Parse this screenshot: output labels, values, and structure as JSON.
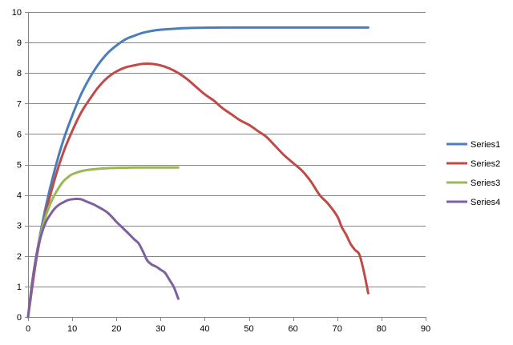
{
  "chart_data": {
    "type": "line",
    "title": "",
    "xlabel": "",
    "ylabel": "",
    "xlim": [
      0,
      90
    ],
    "ylim": [
      0,
      10
    ],
    "x_ticks": [
      0,
      10,
      20,
      30,
      40,
      50,
      60,
      70,
      80,
      90
    ],
    "y_ticks": [
      0,
      1,
      2,
      3,
      4,
      5,
      6,
      7,
      8,
      9,
      10
    ],
    "grid": "horizontal",
    "legend_position": "right",
    "series": [
      {
        "name": "Series1",
        "color": "#4a7ebb",
        "points": [
          [
            0,
            0
          ],
          [
            2,
            2.1
          ],
          [
            4,
            3.6
          ],
          [
            6,
            4.8
          ],
          [
            8,
            5.8
          ],
          [
            10,
            6.6
          ],
          [
            12,
            7.3
          ],
          [
            14,
            7.85
          ],
          [
            16,
            8.3
          ],
          [
            18,
            8.65
          ],
          [
            20,
            8.9
          ],
          [
            22,
            9.1
          ],
          [
            24,
            9.22
          ],
          [
            26,
            9.32
          ],
          [
            28,
            9.38
          ],
          [
            30,
            9.42
          ],
          [
            34,
            9.46
          ],
          [
            38,
            9.48
          ],
          [
            44,
            9.49
          ],
          [
            55,
            9.49
          ],
          [
            65,
            9.49
          ],
          [
            77,
            9.49
          ]
        ]
      },
      {
        "name": "Series2",
        "color": "#be4b48",
        "points": [
          [
            0,
            0
          ],
          [
            2,
            2
          ],
          [
            4,
            3.4
          ],
          [
            6,
            4.5
          ],
          [
            8,
            5.4
          ],
          [
            10,
            6.1
          ],
          [
            12,
            6.7
          ],
          [
            14,
            7.15
          ],
          [
            16,
            7.55
          ],
          [
            18,
            7.85
          ],
          [
            20,
            8.05
          ],
          [
            22,
            8.18
          ],
          [
            24,
            8.25
          ],
          [
            26,
            8.3
          ],
          [
            28,
            8.3
          ],
          [
            30,
            8.25
          ],
          [
            32,
            8.15
          ],
          [
            34,
            8.0
          ],
          [
            36,
            7.8
          ],
          [
            38,
            7.55
          ],
          [
            40,
            7.3
          ],
          [
            42,
            7.1
          ],
          [
            44,
            6.85
          ],
          [
            46,
            6.65
          ],
          [
            48,
            6.45
          ],
          [
            50,
            6.3
          ],
          [
            52,
            6.1
          ],
          [
            54,
            5.9
          ],
          [
            56,
            5.6
          ],
          [
            58,
            5.3
          ],
          [
            60,
            5.05
          ],
          [
            62,
            4.8
          ],
          [
            64,
            4.45
          ],
          [
            66,
            4.0
          ],
          [
            68,
            3.7
          ],
          [
            70,
            3.3
          ],
          [
            71,
            2.95
          ],
          [
            72,
            2.7
          ],
          [
            73,
            2.4
          ],
          [
            74,
            2.2
          ],
          [
            75,
            2.05
          ],
          [
            76,
            1.5
          ],
          [
            77,
            0.78
          ]
        ]
      },
      {
        "name": "Series3",
        "color": "#98b954",
        "points": [
          [
            0,
            0
          ],
          [
            1,
            1.2
          ],
          [
            2,
            2.1
          ],
          [
            3,
            2.8
          ],
          [
            4,
            3.3
          ],
          [
            5,
            3.7
          ],
          [
            6,
            4.0
          ],
          [
            7,
            4.25
          ],
          [
            8,
            4.45
          ],
          [
            9,
            4.58
          ],
          [
            10,
            4.68
          ],
          [
            12,
            4.78
          ],
          [
            14,
            4.83
          ],
          [
            16,
            4.86
          ],
          [
            18,
            4.88
          ],
          [
            20,
            4.89
          ],
          [
            25,
            4.9
          ],
          [
            30,
            4.9
          ],
          [
            34,
            4.9
          ]
        ]
      },
      {
        "name": "Series4",
        "color": "#7d60a0",
        "points": [
          [
            0,
            0
          ],
          [
            1,
            1.2
          ],
          [
            2,
            2.1
          ],
          [
            3,
            2.7
          ],
          [
            4,
            3.1
          ],
          [
            5,
            3.35
          ],
          [
            6,
            3.55
          ],
          [
            7,
            3.68
          ],
          [
            8,
            3.76
          ],
          [
            9,
            3.83
          ],
          [
            10,
            3.86
          ],
          [
            11,
            3.87
          ],
          [
            12,
            3.86
          ],
          [
            13,
            3.8
          ],
          [
            14,
            3.74
          ],
          [
            15,
            3.68
          ],
          [
            16,
            3.6
          ],
          [
            17,
            3.52
          ],
          [
            18,
            3.42
          ],
          [
            19,
            3.28
          ],
          [
            20,
            3.12
          ],
          [
            21,
            2.98
          ],
          [
            22,
            2.84
          ],
          [
            23,
            2.7
          ],
          [
            24,
            2.55
          ],
          [
            25,
            2.42
          ],
          [
            26,
            2.15
          ],
          [
            27,
            1.85
          ],
          [
            28,
            1.72
          ],
          [
            29,
            1.65
          ],
          [
            30,
            1.55
          ],
          [
            31,
            1.45
          ],
          [
            32,
            1.22
          ],
          [
            33,
            0.98
          ],
          [
            34,
            0.6
          ]
        ]
      }
    ]
  }
}
